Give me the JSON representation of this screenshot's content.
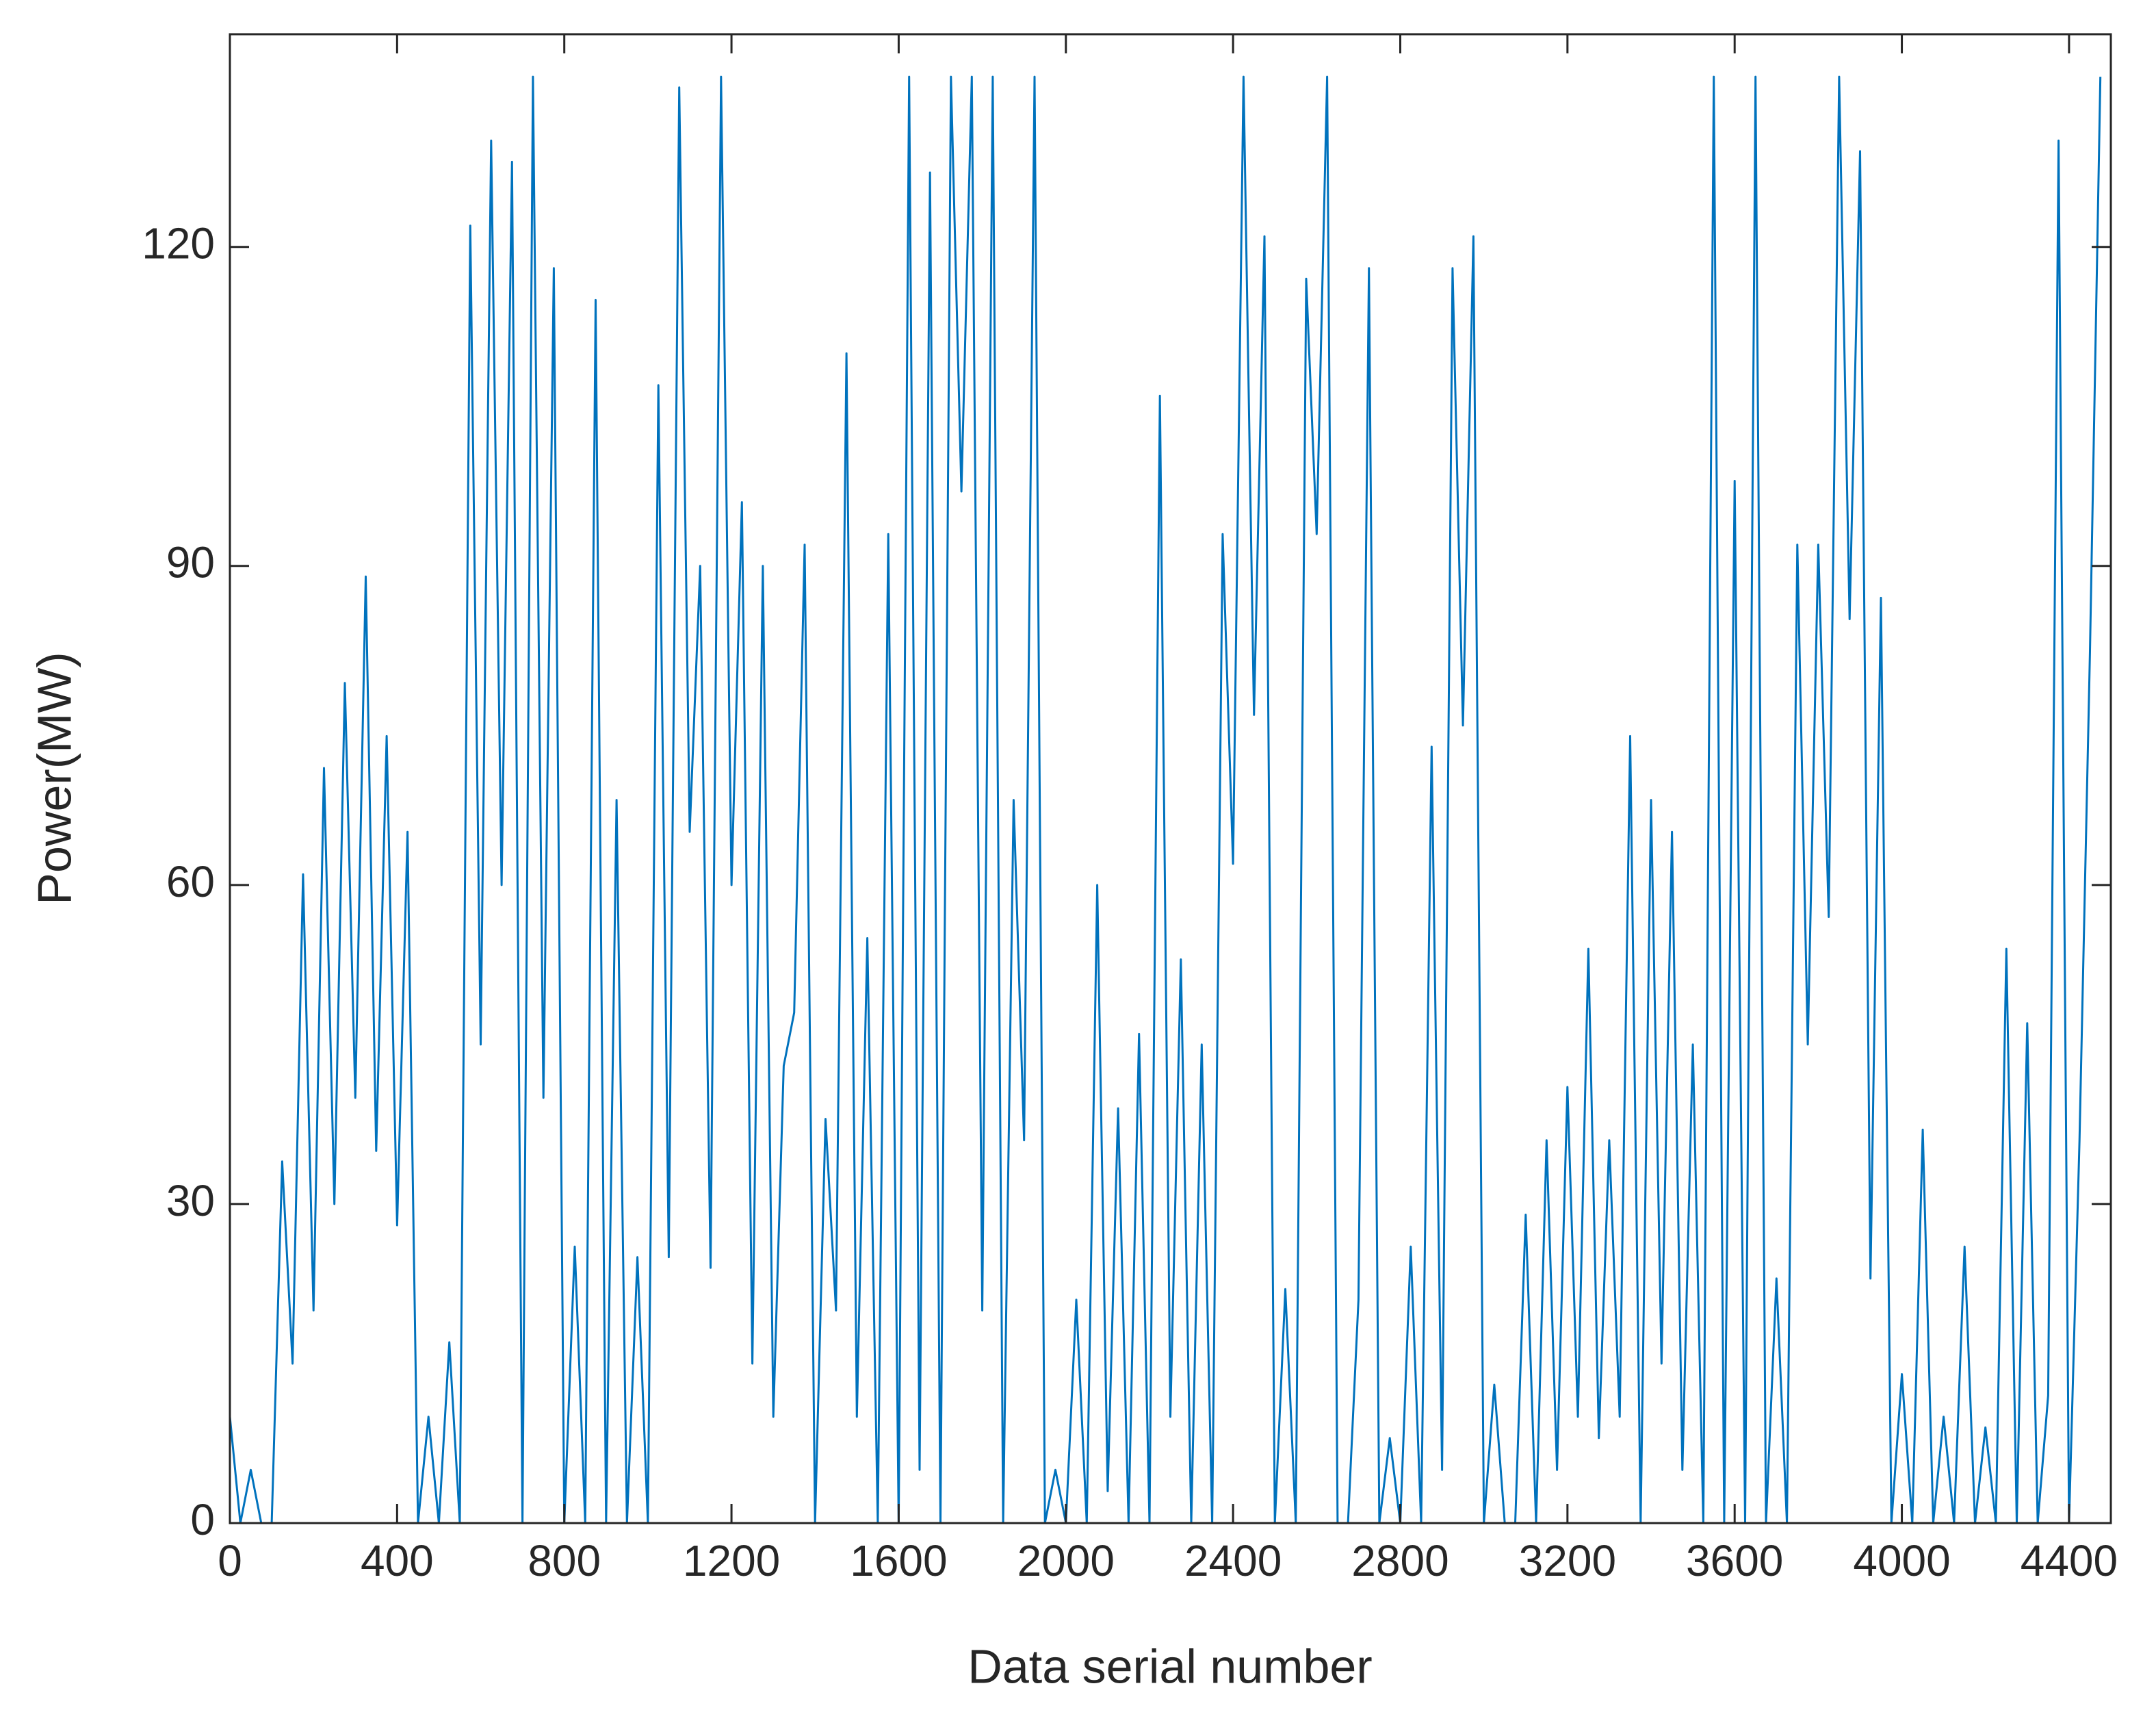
{
  "chart_data": {
    "type": "line",
    "xlabel": "Data serial number",
    "ylabel": "Power(MW)",
    "xlim": [
      0,
      4500
    ],
    "ylim": [
      0,
      140
    ],
    "xticks": [
      0,
      400,
      800,
      1200,
      1600,
      2000,
      2400,
      2800,
      3200,
      3600,
      4000,
      4400
    ],
    "yticks": [
      0,
      30,
      60,
      90,
      120
    ],
    "grid": false,
    "series": [
      {
        "color": "#0072bd",
        "x": [
          0,
          25,
          50,
          75,
          100,
          125,
          150,
          175,
          200,
          225,
          250,
          275,
          300,
          325,
          350,
          375,
          400,
          425,
          450,
          475,
          500,
          525,
          550,
          575,
          600,
          625,
          650,
          675,
          700,
          725,
          750,
          775,
          800,
          825,
          850,
          875,
          900,
          925,
          950,
          975,
          1000,
          1025,
          1050,
          1075,
          1100,
          1125,
          1150,
          1175,
          1200,
          1225,
          1250,
          1275,
          1300,
          1325,
          1350,
          1375,
          1400,
          1425,
          1450,
          1475,
          1500,
          1525,
          1550,
          1575,
          1600,
          1625,
          1650,
          1675,
          1700,
          1725,
          1750,
          1775,
          1800,
          1825,
          1850,
          1875,
          1900,
          1925,
          1950,
          1975,
          2000,
          2025,
          2050,
          2075,
          2100,
          2125,
          2150,
          2175,
          2200,
          2225,
          2250,
          2275,
          2300,
          2325,
          2350,
          2375,
          2400,
          2425,
          2450,
          2475,
          2500,
          2525,
          2550,
          2575,
          2600,
          2625,
          2650,
          2675,
          2700,
          2725,
          2750,
          2775,
          2800,
          2825,
          2850,
          2875,
          2900,
          2925,
          2950,
          2975,
          3000,
          3025,
          3050,
          3075,
          3100,
          3125,
          3150,
          3175,
          3200,
          3225,
          3250,
          3275,
          3300,
          3325,
          3350,
          3375,
          3400,
          3425,
          3450,
          3475,
          3500,
          3525,
          3550,
          3575,
          3600,
          3625,
          3650,
          3675,
          3700,
          3725,
          3750,
          3775,
          3800,
          3825,
          3850,
          3875,
          3900,
          3925,
          3950,
          3975,
          4000,
          4025,
          4050,
          4075,
          4100,
          4125,
          4150,
          4175,
          4200,
          4225,
          4250,
          4275,
          4300,
          4325,
          4350,
          4375,
          4400,
          4425,
          4450,
          4475
        ],
        "values": [
          10,
          0,
          5,
          0,
          0,
          34,
          15,
          61,
          20,
          71,
          30,
          79,
          40,
          89,
          35,
          74,
          28,
          65,
          0,
          10,
          0,
          17,
          0,
          122,
          45,
          130,
          60,
          128,
          0,
          136,
          40,
          118,
          0,
          26,
          0,
          115,
          0,
          68,
          0,
          25,
          0,
          107,
          25,
          135,
          65,
          90,
          24,
          136,
          60,
          96,
          15,
          90,
          10,
          43,
          48,
          92,
          0,
          38,
          20,
          110,
          10,
          55,
          0,
          93,
          0,
          136,
          5,
          127,
          0,
          136,
          97,
          136,
          20,
          136,
          0,
          68,
          36,
          136,
          0,
          5,
          0,
          21,
          0,
          60,
          3,
          39,
          0,
          46,
          0,
          106,
          10,
          53,
          0,
          45,
          0,
          93,
          62,
          136,
          76,
          121,
          0,
          22,
          0,
          117,
          93,
          136,
          0,
          0,
          21,
          118,
          0,
          8,
          0,
          26,
          0,
          73,
          5,
          118,
          75,
          121,
          0,
          13,
          0,
          0,
          29,
          0,
          36,
          5,
          41,
          10,
          54,
          8,
          36,
          10,
          74,
          0,
          68,
          15,
          65,
          5,
          45,
          0,
          136,
          0,
          98,
          0,
          136,
          0,
          23,
          0,
          92,
          45,
          92,
          57,
          136,
          85,
          129,
          23,
          87,
          0,
          14,
          0,
          37,
          0,
          10,
          0,
          26,
          0,
          9,
          0,
          54,
          0,
          47,
          0,
          12,
          130,
          0,
          36,
          82,
          136
        ]
      }
    ]
  }
}
